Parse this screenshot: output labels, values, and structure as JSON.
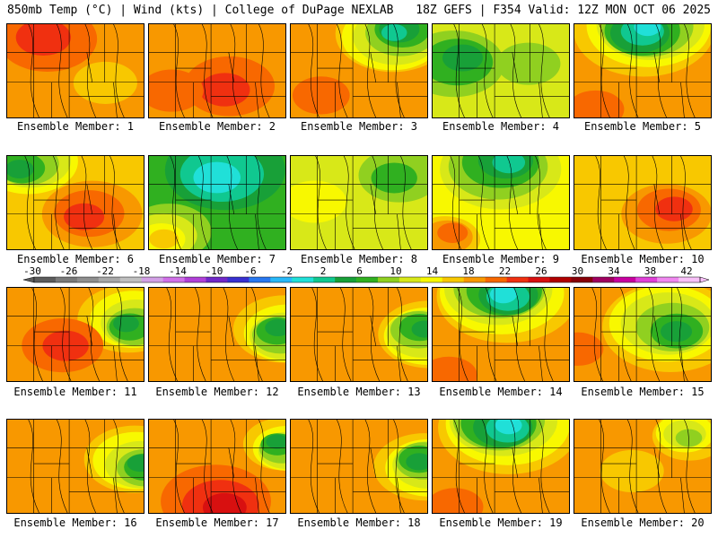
{
  "header": {
    "left": "850mb Temp (°C) | Wind (kts) | College of DuPage NEXLAB",
    "right": "18Z GEFS | F354 Valid: 12Z MON OCT 06 2025"
  },
  "members": [
    {
      "label": "Ensemble Member: 1",
      "regime": "warm-north"
    },
    {
      "label": "Ensemble Member: 2",
      "regime": "warm-south"
    },
    {
      "label": "Ensemble Member: 3",
      "regime": "cool-northeast"
    },
    {
      "label": "Ensemble Member: 4",
      "regime": "cool"
    },
    {
      "label": "Ensemble Member: 5",
      "regime": "cold-north"
    },
    {
      "label": "Ensemble Member: 6",
      "regime": "warm-diagonal"
    },
    {
      "label": "Ensemble Member: 7",
      "regime": "cold-trough"
    },
    {
      "label": "Ensemble Member: 8",
      "regime": "mild"
    },
    {
      "label": "Ensemble Member: 9",
      "regime": "cool-north"
    },
    {
      "label": "Ensemble Member: 10",
      "regime": "warm-east"
    },
    {
      "label": "Ensemble Member: 11",
      "regime": "warm-west-cool-east"
    },
    {
      "label": "Ensemble Member: 12",
      "regime": "warm-cool-east"
    },
    {
      "label": "Ensemble Member: 13",
      "regime": "warm-cool-east"
    },
    {
      "label": "Ensemble Member: 14",
      "regime": "cold-north"
    },
    {
      "label": "Ensemble Member: 15",
      "regime": "cold-east"
    },
    {
      "label": "Ensemble Member: 16",
      "regime": "warm-cool-east"
    },
    {
      "label": "Ensemble Member: 17",
      "regime": "hot-south"
    },
    {
      "label": "Ensemble Member: 18",
      "regime": "warm-cool-east"
    },
    {
      "label": "Ensemble Member: 19",
      "regime": "cold-north"
    },
    {
      "label": "Ensemble Member: 20",
      "regime": "warm"
    }
  ],
  "colorbar": {
    "ticks": [
      "-30",
      "-26",
      "-22",
      "-18",
      "-14",
      "-10",
      "-6",
      "-2",
      "2",
      "6",
      "10",
      "14",
      "18",
      "22",
      "26",
      "30",
      "34",
      "38",
      "42"
    ],
    "colors": [
      "#5c5c5c",
      "#7a7a7a",
      "#8f8f8f",
      "#a8a8a8",
      "#bfbfbf",
      "#d2a0e6",
      "#d070e8",
      "#b040d8",
      "#7028c8",
      "#3830d0",
      "#2878f0",
      "#28b8f8",
      "#20e0d8",
      "#10c890",
      "#18a038",
      "#30b020",
      "#90d020",
      "#d8e818",
      "#f8f800",
      "#f8c800",
      "#f89800",
      "#f86800",
      "#f03010",
      "#d81010",
      "#b00000",
      "#880008",
      "#a00060",
      "#c800a0",
      "#e040d8",
      "#f088f0",
      "#f8c0f8"
    ]
  }
}
